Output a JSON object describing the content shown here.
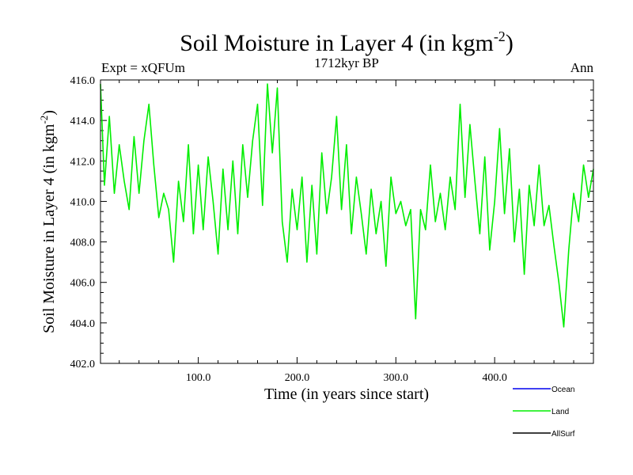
{
  "chart_data": {
    "type": "line",
    "title": "Soil Moisture in Layer 4 (in kgm",
    "title_sup": "-2",
    "title_close": ")",
    "subtitle_left": "Expt = xQFUm",
    "subtitle_center": "1712kyr BP",
    "subtitle_right": "Ann",
    "xlabel": "Time (in years since start)",
    "ylabel": "Soil Moisture in Layer 4 (in kgm",
    "ylabel_sup": "-2",
    "ylabel_close": ")",
    "xlim": [
      1,
      500
    ],
    "ylim": [
      402,
      416
    ],
    "xticks": [
      100,
      200,
      300,
      400
    ],
    "xtick_labels": [
      "100.0",
      "200.0",
      "300.0",
      "400.0"
    ],
    "yticks": [
      402,
      404,
      406,
      408,
      410,
      412,
      414,
      416
    ],
    "ytick_labels": [
      "402.0",
      "404.0",
      "406.0",
      "408.0",
      "410.0",
      "412.0",
      "414.0",
      "416.0"
    ],
    "legend_position": "bottom-right",
    "series": [
      {
        "name": "Land",
        "color": "#00ee00",
        "x": [
          1,
          5,
          10,
          15,
          20,
          25,
          30,
          35,
          40,
          45,
          50,
          55,
          60,
          65,
          70,
          75,
          80,
          85,
          90,
          95,
          100,
          105,
          110,
          115,
          120,
          125,
          130,
          135,
          140,
          145,
          150,
          155,
          160,
          165,
          170,
          175,
          180,
          185,
          190,
          195,
          200,
          205,
          210,
          215,
          220,
          225,
          230,
          235,
          240,
          245,
          250,
          255,
          260,
          265,
          270,
          275,
          280,
          285,
          290,
          295,
          300,
          305,
          310,
          315,
          320,
          325,
          330,
          335,
          340,
          345,
          350,
          355,
          360,
          365,
          370,
          375,
          380,
          385,
          390,
          395,
          400,
          405,
          410,
          415,
          420,
          425,
          430,
          435,
          440,
          445,
          450,
          455,
          460,
          465,
          470,
          475,
          480,
          485,
          490,
          495,
          500
        ],
        "values": [
          415.8,
          410.8,
          414.2,
          410.4,
          412.8,
          411.0,
          409.6,
          413.2,
          410.4,
          413.0,
          414.8,
          411.8,
          409.2,
          410.4,
          409.6,
          407.0,
          411.0,
          409.0,
          412.8,
          408.4,
          411.8,
          408.6,
          412.2,
          410.0,
          407.4,
          411.6,
          408.6,
          412.0,
          408.4,
          412.8,
          410.2,
          413.0,
          414.8,
          409.8,
          415.8,
          412.4,
          415.6,
          409.0,
          407.0,
          410.6,
          408.6,
          411.2,
          407.0,
          410.8,
          407.4,
          412.4,
          409.4,
          411.2,
          414.2,
          409.6,
          412.8,
          408.4,
          411.2,
          409.4,
          407.4,
          410.6,
          408.4,
          410.0,
          406.8,
          411.2,
          409.4,
          410.0,
          408.8,
          409.6,
          404.2,
          409.6,
          408.6,
          411.8,
          409.0,
          410.4,
          408.6,
          411.2,
          409.6,
          414.8,
          410.2,
          413.8,
          411.0,
          408.4,
          412.2,
          407.6,
          410.0,
          413.6,
          409.4,
          412.6,
          408.0,
          410.6,
          406.4,
          410.8,
          408.8,
          411.8,
          408.8,
          409.8,
          407.8,
          406.0,
          403.8,
          407.6,
          410.4,
          409.0,
          411.8,
          410.2,
          411.6
        ]
      }
    ],
    "legend": [
      {
        "name": "Ocean",
        "color": "#0000ee"
      },
      {
        "name": "Land",
        "color": "#00ee00"
      },
      {
        "name": "AllSurf",
        "color": "#000000"
      }
    ]
  }
}
